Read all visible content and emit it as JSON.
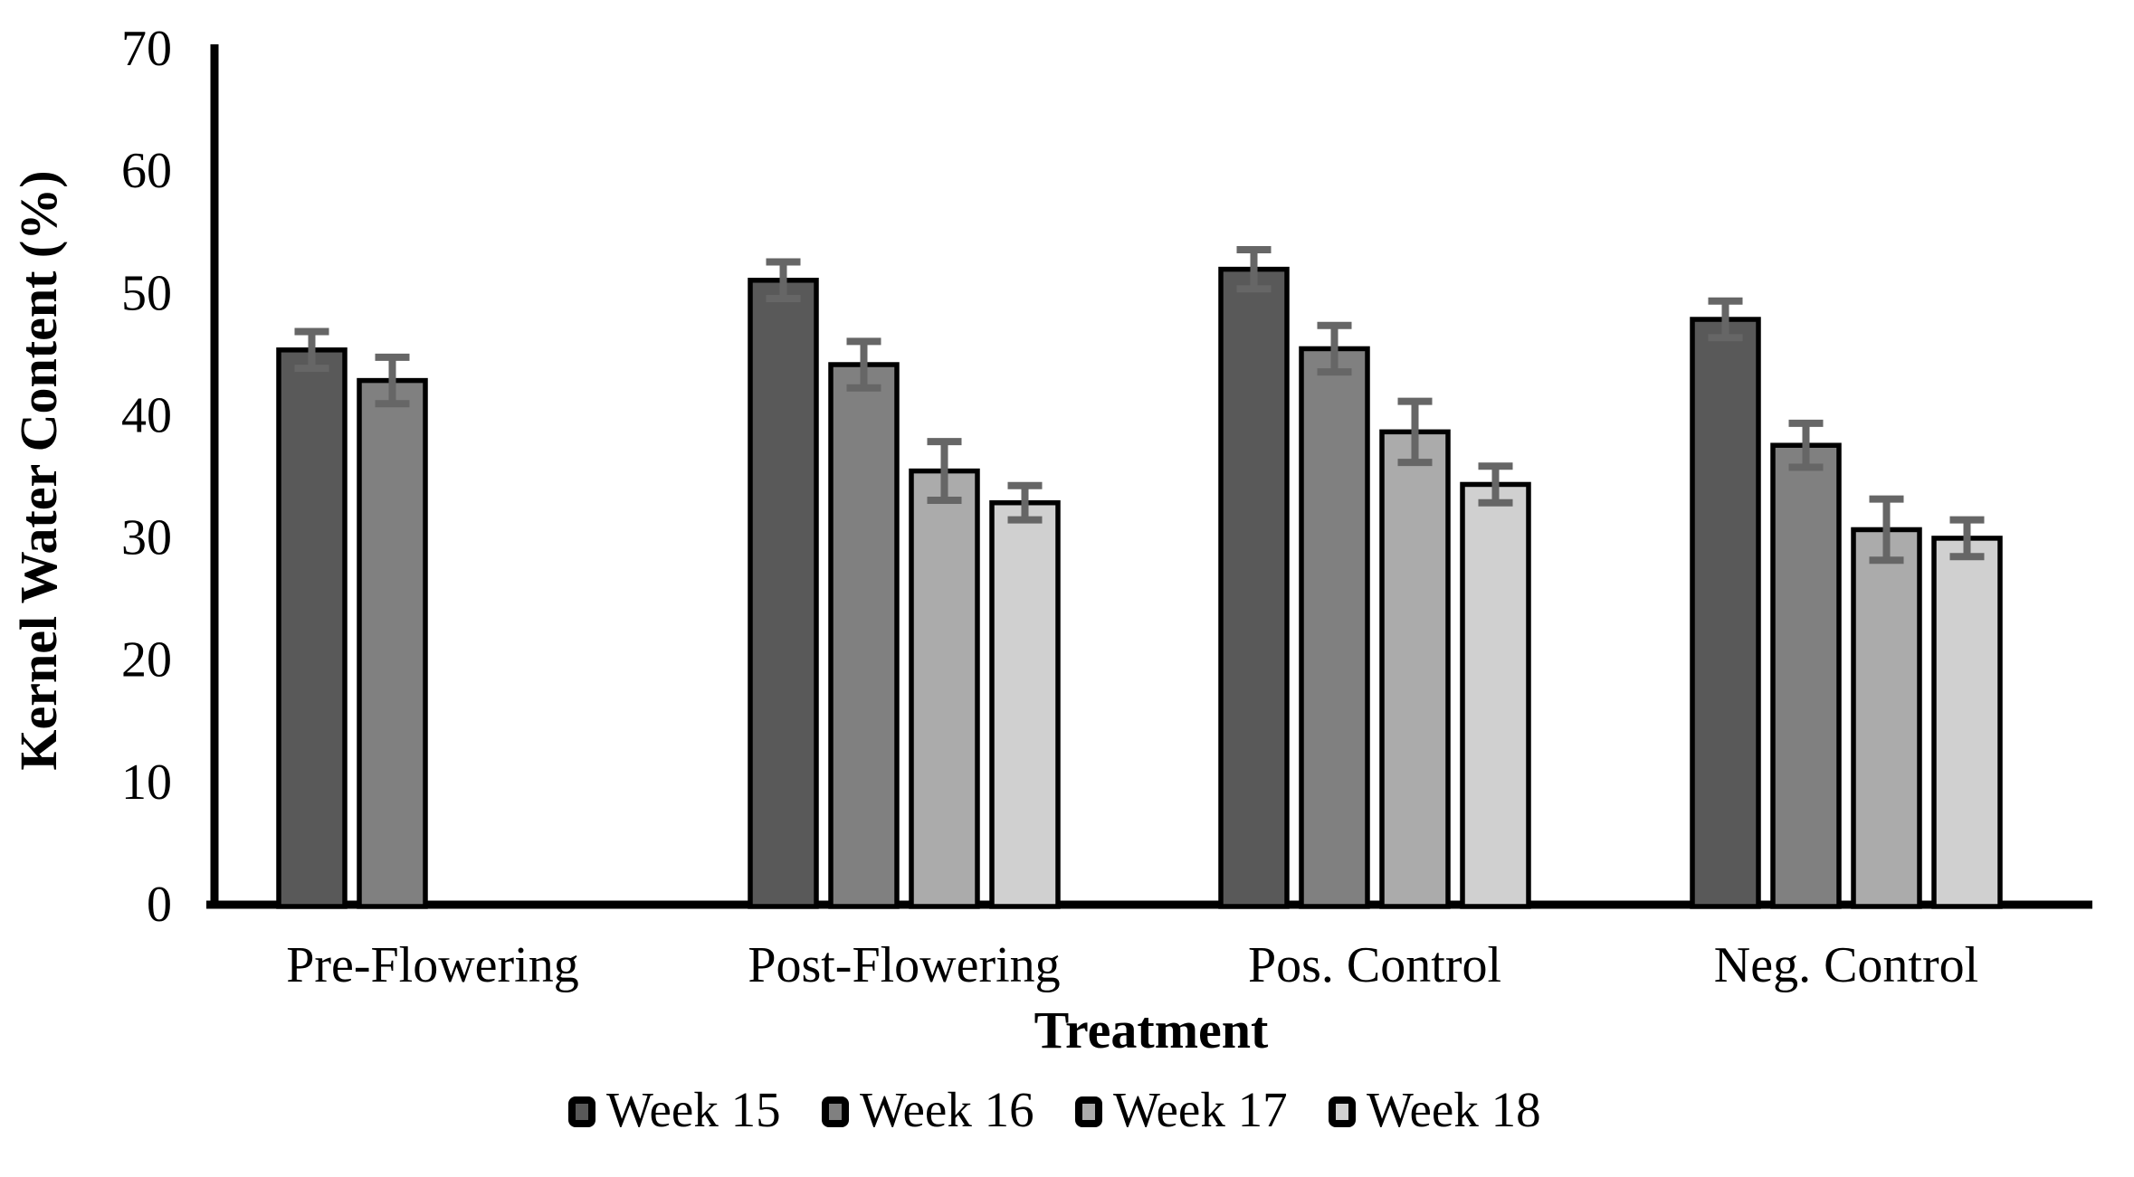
{
  "chart_data": {
    "type": "bar",
    "title": "",
    "xlabel": "Treatment",
    "ylabel": "Kernel Water Content (%)",
    "ylim": [
      0,
      70
    ],
    "yticks": [
      0,
      10,
      20,
      30,
      40,
      50,
      60,
      70
    ],
    "grid": false,
    "legend_position": "bottom",
    "axis_color": "#000000",
    "error_bar_color": "#666666",
    "bar_border_color": "#000000",
    "categories": [
      "Pre-Flowering",
      "Post-Flowering",
      "Pos. Control",
      "Neg. Control"
    ],
    "series": [
      {
        "name": "Week 15",
        "color": "#595959",
        "values": [
          45.3,
          51.0,
          51.9,
          47.8
        ],
        "errors": [
          1.5,
          1.5,
          1.6,
          1.5
        ]
      },
      {
        "name": "Week 16",
        "color": "#808080",
        "values": [
          42.8,
          44.1,
          45.4,
          37.5
        ],
        "errors": [
          1.9,
          1.9,
          1.9,
          1.8
        ]
      },
      {
        "name": "Week 17",
        "color": "#ababab",
        "values": [
          null,
          35.4,
          38.6,
          30.6
        ],
        "errors": [
          null,
          2.4,
          2.5,
          2.5
        ]
      },
      {
        "name": "Week 18",
        "color": "#d0d0d0",
        "values": [
          null,
          32.8,
          34.3,
          29.9
        ],
        "errors": [
          null,
          1.4,
          1.5,
          1.5
        ]
      }
    ]
  }
}
